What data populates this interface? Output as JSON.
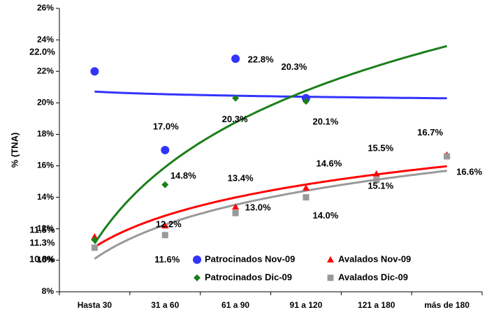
{
  "chart_data": {
    "type": "scatter",
    "y_label": "% (TNA)",
    "categories": [
      "Hasta 30",
      "31 a 60",
      "61 a 90",
      "91 a 120",
      "121 a 180",
      "más de 180"
    ],
    "ylim": [
      8,
      26
    ],
    "yticks": [
      {
        "value": 8,
        "label": "8%"
      },
      {
        "value": 10,
        "label": "10%"
      },
      {
        "value": 12,
        "label": "12%"
      },
      {
        "value": 14,
        "label": "14%"
      },
      {
        "value": 16,
        "label": "16%"
      },
      {
        "value": 18,
        "label": "18%"
      },
      {
        "value": 20,
        "label": "20%"
      },
      {
        "value": 22,
        "label": "22%"
      },
      {
        "value": 24,
        "label": "24%"
      },
      {
        "value": 26,
        "label": "26%"
      }
    ],
    "trendline": "logarithmic",
    "legend": "lower center",
    "grid": false,
    "series": [
      {
        "name": "Patrocinados Nov-09",
        "color": "#3333ff",
        "marker": "circle",
        "values": [
          22.0,
          17.0,
          22.8,
          20.3,
          null,
          null
        ],
        "value_labels": [
          "22.0%",
          "17.0%",
          "22.8%",
          "20.3%",
          null,
          null
        ]
      },
      {
        "name": "Avalados Nov-09",
        "color": "#ff0000",
        "marker": "triangle",
        "values": [
          11.5,
          12.2,
          13.4,
          14.6,
          15.5,
          16.7
        ],
        "value_labels": [
          "11.5%",
          "12.2%",
          "13.4%",
          "14.6%",
          "15.5%",
          "16.7%"
        ]
      },
      {
        "name": "Patrocinados Dic-09",
        "color": "#1a7f1a",
        "marker": "diamond",
        "values": [
          11.3,
          14.8,
          20.3,
          20.1,
          null,
          null
        ],
        "value_labels": [
          "11.3%",
          "14.8%",
          "20.3%",
          "20.1%",
          null,
          null
        ]
      },
      {
        "name": "Avalados Dic-09",
        "color": "#999999",
        "marker": "square",
        "values": [
          10.8,
          11.6,
          13.0,
          14.0,
          15.1,
          16.6
        ],
        "value_labels": [
          "10.8%",
          "11.6%",
          "13.0%",
          "14.0%",
          "15.1%",
          "16.6%"
        ]
      }
    ]
  }
}
